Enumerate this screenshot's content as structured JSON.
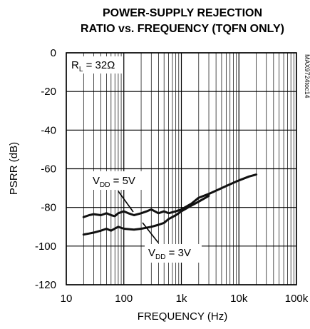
{
  "chart_data": {
    "type": "line",
    "title": [
      "POWER-SUPPLY REJECTION",
      "RATIO vs. FREQUENCY (TQFN ONLY)"
    ],
    "xlabel": "FREQUENCY (Hz)",
    "ylabel": "PSRR (dB)",
    "x_scale": "log",
    "xlim": [
      10,
      100000
    ],
    "ylim": [
      -120,
      0
    ],
    "x_ticks": [
      10,
      100,
      1000,
      10000,
      100000
    ],
    "x_tick_labels": [
      "10",
      "100",
      "1k",
      "10k",
      "100k"
    ],
    "y_ticks": [
      0,
      -20,
      -40,
      -60,
      -80,
      -100,
      -120
    ],
    "y_tick_labels": [
      "0",
      "-20",
      "-40",
      "-60",
      "-80",
      "-100",
      "-120"
    ],
    "grid": true,
    "series": [
      {
        "name": "VDD = 5V",
        "x": [
          20,
          25,
          30,
          40,
          50,
          60,
          70,
          80,
          100,
          120,
          150,
          200,
          250,
          300,
          400,
          500,
          600,
          800,
          1000,
          1500,
          2000,
          3000,
          5000,
          7000,
          10000,
          15000,
          20000
        ],
        "y": [
          -85,
          -84,
          -83.5,
          -84,
          -83,
          -84,
          -84.5,
          -83,
          -82,
          -83,
          -84,
          -83,
          -82,
          -81,
          -83,
          -82,
          -83,
          -82,
          -81,
          -78,
          -75,
          -73,
          -70,
          -68,
          -66,
          -64,
          -63
        ]
      },
      {
        "name": "VDD = 3V",
        "x": [
          20,
          25,
          30,
          40,
          50,
          60,
          80,
          100,
          150,
          200,
          300,
          400,
          500,
          600,
          800,
          1000,
          1500,
          2000,
          3000
        ],
        "y": [
          -94,
          -93.5,
          -93,
          -92,
          -91,
          -92,
          -90,
          -91,
          -91.5,
          -91,
          -90,
          -89,
          -88,
          -86,
          -84,
          -82,
          -79,
          -77,
          -74
        ]
      }
    ]
  },
  "annotations": {
    "rl": {
      "main": "R",
      "sub": "L",
      "rest": " = 32Ω"
    },
    "v5": {
      "main": "V",
      "sub": "DD",
      "rest": " = 5V"
    },
    "v3": {
      "main": "V",
      "sub": "DD",
      "rest": " = 3V"
    },
    "side_label": "MAX9724toc14"
  }
}
